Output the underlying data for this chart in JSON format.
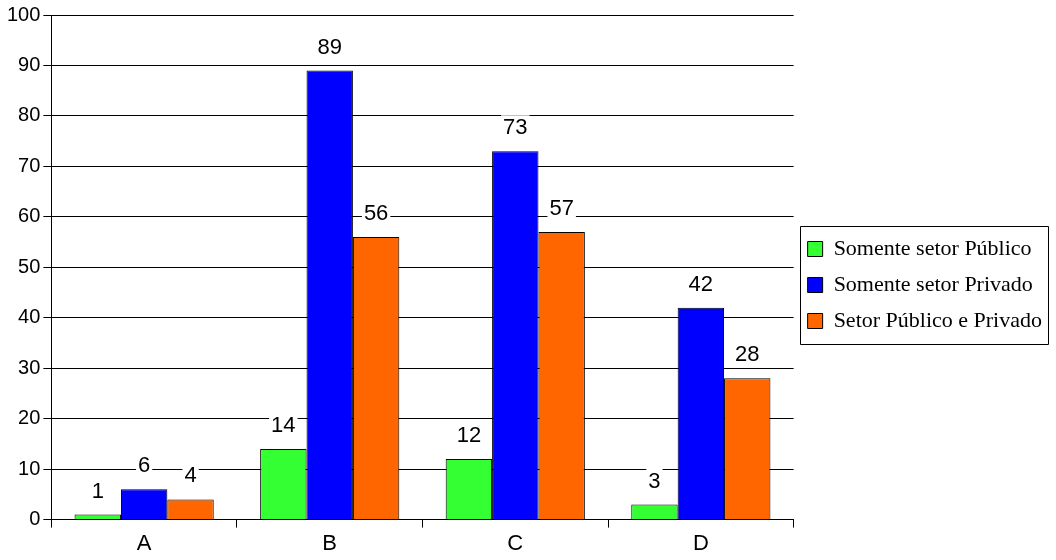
{
  "chart_data": {
    "type": "bar",
    "categories": [
      "A",
      "B",
      "C",
      "D"
    ],
    "series": [
      {
        "name": "Somente setor Público",
        "color": "#33ff33",
        "values": [
          1,
          14,
          12,
          3
        ]
      },
      {
        "name": "Somente setor Privado",
        "color": "#0000ff",
        "values": [
          6,
          89,
          73,
          42
        ]
      },
      {
        "name": "Setor Público e Privado",
        "color": "#ff6600",
        "values": [
          4,
          56,
          57,
          28
        ]
      }
    ],
    "ylim": [
      0,
      100
    ],
    "yticks": [
      0,
      10,
      20,
      30,
      40,
      50,
      60,
      70,
      80,
      90,
      100
    ],
    "grid": "y",
    "legend": "right",
    "data_labels": true
  }
}
